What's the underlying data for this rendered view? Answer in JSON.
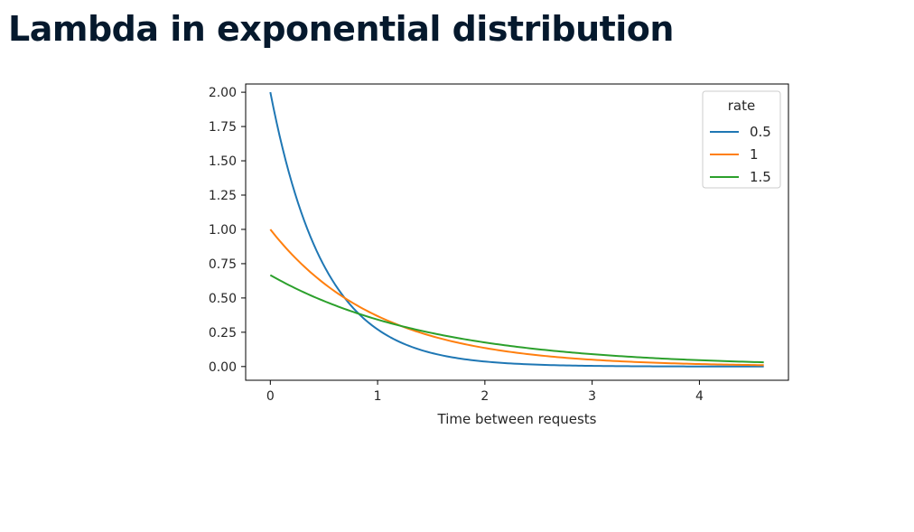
{
  "slide": {
    "title": "Lambda in exponential distribution"
  },
  "chart_data": {
    "type": "line",
    "title": "",
    "xlabel": "Time between requests",
    "ylabel": "",
    "xlim": [
      -0.23,
      4.83
    ],
    "ylim": [
      -0.1,
      2.06
    ],
    "x_domain": [
      0,
      4.6
    ],
    "xticks": [
      "0",
      "1",
      "2",
      "3",
      "4"
    ],
    "yticks": [
      "0.00",
      "0.25",
      "0.50",
      "0.75",
      "1.00",
      "1.25",
      "1.50",
      "1.75",
      "2.00"
    ],
    "grid": false,
    "legend": {
      "title": "rate",
      "placement": "top-right"
    },
    "series": [
      {
        "name": "0.5",
        "color": "#1f77b4",
        "x": [
          0,
          0.25,
          0.5,
          0.75,
          1.0,
          1.5,
          2.0,
          2.5,
          3.0,
          3.5,
          4.0,
          4.6
        ],
        "values": [
          1.96,
          1.19,
          0.72,
          0.44,
          0.27,
          0.1,
          0.04,
          0.01,
          0.0,
          0.0,
          0.0,
          0.0
        ]
      },
      {
        "name": "1",
        "color": "#ff7f0e",
        "x": [
          0,
          0.25,
          0.5,
          0.75,
          1.0,
          1.5,
          2.0,
          2.5,
          3.0,
          3.5,
          4.0,
          4.6
        ],
        "values": [
          0.99,
          0.77,
          0.6,
          0.47,
          0.37,
          0.22,
          0.14,
          0.08,
          0.05,
          0.03,
          0.02,
          0.01
        ]
      },
      {
        "name": "1.5",
        "color": "#2ca02c",
        "x": [
          0,
          0.25,
          0.5,
          0.75,
          1.0,
          1.5,
          2.0,
          2.5,
          3.0,
          3.5,
          4.0,
          4.6
        ],
        "values": [
          0.66,
          0.56,
          0.47,
          0.4,
          0.34,
          0.24,
          0.17,
          0.12,
          0.09,
          0.06,
          0.05,
          0.03
        ]
      }
    ]
  }
}
